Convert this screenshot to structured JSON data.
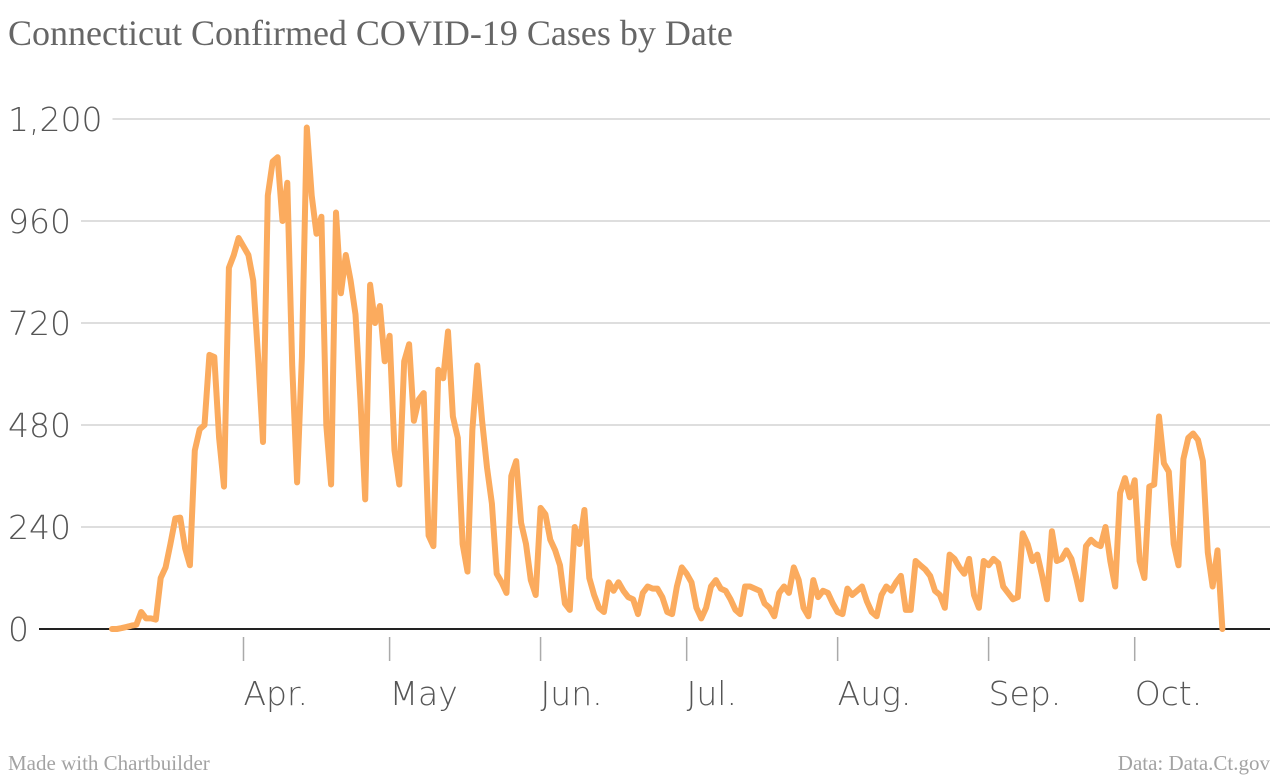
{
  "chart_data": {
    "type": "line",
    "title": "Connecticut Confirmed COVID-19 Cases by Date",
    "source": "Data: Data.Ct.gov",
    "credit": "Made with Chartbuilder",
    "color": "#fbab5e",
    "ylim": [
      0,
      1200
    ],
    "yticks": [
      0,
      240,
      480,
      720,
      960,
      {
        "value": 1200,
        "label": "1,200"
      }
    ],
    "grid": true,
    "categories": [
      null,
      null,
      null,
      null,
      null,
      null,
      null,
      null,
      null,
      null,
      null,
      null,
      null,
      null,
      null,
      null,
      null,
      null,
      null,
      null,
      null,
      null,
      null,
      null,
      null,
      null,
      null,
      "Apr.",
      null,
      null,
      null,
      null,
      null,
      null,
      null,
      null,
      null,
      null,
      null,
      null,
      null,
      null,
      null,
      null,
      null,
      null,
      null,
      null,
      null,
      null,
      null,
      null,
      null,
      null,
      null,
      null,
      null,
      "May",
      null,
      null,
      null,
      null,
      null,
      null,
      null,
      null,
      null,
      null,
      null,
      null,
      null,
      null,
      null,
      null,
      null,
      null,
      null,
      null,
      null,
      null,
      null,
      null,
      null,
      null,
      null,
      null,
      null,
      null,
      "Jun.",
      null,
      null,
      null,
      null,
      null,
      null,
      null,
      null,
      null,
      null,
      null,
      null,
      null,
      null,
      null,
      null,
      null,
      null,
      null,
      null,
      null,
      null,
      null,
      null,
      null,
      null,
      null,
      null,
      null,
      "Jul.",
      null,
      null,
      null,
      null,
      null,
      null,
      null,
      null,
      null,
      null,
      null,
      null,
      null,
      null,
      null,
      null,
      null,
      null,
      null,
      null,
      null,
      null,
      null,
      null,
      null,
      null,
      null,
      null,
      null,
      null,
      "Aug.",
      null,
      null,
      null,
      null,
      null,
      null,
      null,
      null,
      null,
      null,
      null,
      null,
      null,
      null,
      null,
      null,
      null,
      null,
      null,
      null,
      null,
      null,
      null,
      null,
      null,
      null,
      null,
      null,
      null,
      null,
      "Sep.",
      null,
      null,
      null,
      null,
      null,
      null,
      null,
      null,
      null,
      null,
      null,
      null,
      null,
      null,
      null,
      null,
      null,
      null,
      null,
      null,
      null,
      null,
      null,
      null,
      null,
      null,
      null,
      null,
      null,
      "Oct.",
      null,
      null,
      null,
      null,
      null,
      null,
      null,
      null,
      null,
      null,
      null,
      null,
      null,
      null,
      null,
      null,
      null,
      null
    ],
    "values": [
      0,
      0,
      2,
      5,
      8,
      10,
      40,
      25,
      25,
      22,
      120,
      145,
      200,
      260,
      262,
      190,
      150,
      420,
      470,
      480,
      645,
      640,
      450,
      335,
      850,
      880,
      920,
      900,
      880,
      820,
      640,
      440,
      1020,
      1100,
      1110,
      960,
      1050,
      620,
      345,
      640,
      1180,
      1020,
      930,
      970,
      480,
      340,
      980,
      790,
      880,
      820,
      740,
      540,
      305,
      810,
      720,
      760,
      630,
      690,
      420,
      340,
      630,
      670,
      490,
      540,
      555,
      220,
      195,
      610,
      590,
      700,
      500,
      450,
      200,
      135,
      470,
      620,
      490,
      380,
      295,
      130,
      110,
      85,
      360,
      395,
      250,
      200,
      115,
      80,
      285,
      270,
      210,
      185,
      150,
      60,
      45,
      240,
      200,
      280,
      120,
      80,
      50,
      40,
      110,
      90,
      110,
      90,
      75,
      70,
      35,
      85,
      100,
      95,
      95,
      75,
      40,
      35,
      100,
      145,
      130,
      110,
      50,
      25,
      50,
      100,
      115,
      95,
      90,
      70,
      45,
      35,
      100,
      100,
      95,
      90,
      60,
      50,
      30,
      85,
      100,
      85,
      145,
      115,
      50,
      30,
      115,
      75,
      90,
      85,
      60,
      40,
      35,
      95,
      80,
      90,
      100,
      65,
      40,
      30,
      80,
      100,
      90,
      110,
      125,
      45,
      45,
      160,
      150,
      140,
      125,
      90,
      80,
      50,
      175,
      165,
      145,
      130,
      165,
      80,
      50,
      160,
      150,
      165,
      155,
      100,
      85,
      70,
      75,
      225,
      200,
      160,
      175,
      125,
      70,
      230,
      160,
      165,
      185,
      165,
      120,
      70,
      195,
      210,
      200,
      195,
      240,
      160,
      100,
      320,
      355,
      310,
      350,
      160,
      120,
      335,
      340,
      500,
      390,
      370,
      200,
      150,
      400,
      450,
      460,
      445,
      395,
      180,
      100,
      185,
      0
    ]
  }
}
